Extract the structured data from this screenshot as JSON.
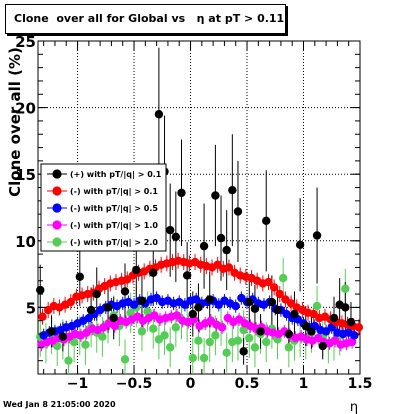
{
  "chart_data": {
    "type": "scatter",
    "title": "Clone  over all for Global vs   η at pT > 0.11",
    "xlabel": "η",
    "ylabel": "Clone  over all (%)",
    "xlim": [
      -1.35,
      1.5
    ],
    "ylim": [
      0,
      25
    ],
    "xticks": [
      -1,
      -0.5,
      0,
      0.5,
      1,
      1.5
    ],
    "xtick_labels": [
      "−1",
      "−0.5",
      "0",
      "0.5",
      "1",
      "1.5"
    ],
    "yticks": [
      5,
      10,
      15,
      20,
      25
    ],
    "ytick_labels": [
      "5",
      "10",
      "15",
      "20",
      "25"
    ],
    "grid": true,
    "legend_position": "center-left",
    "series": [
      {
        "name": "(+) with pT/|q| > 0.1",
        "color": "#000000",
        "x": [
          -1.33,
          -1.23,
          -1.13,
          -0.98,
          -0.88,
          -0.83,
          -0.73,
          -0.68,
          -0.58,
          -0.48,
          -0.43,
          -0.33,
          -0.28,
          -0.23,
          -0.18,
          -0.13,
          -0.08,
          -0.03,
          0.02,
          0.07,
          0.12,
          0.17,
          0.22,
          0.27,
          0.32,
          0.37,
          0.42,
          0.47,
          0.52,
          0.57,
          0.62,
          0.67,
          0.72,
          0.77,
          0.87,
          0.92,
          0.97,
          1.02,
          1.07,
          1.12,
          1.17,
          1.27,
          1.32,
          1.37,
          1.42
        ],
        "y": [
          6.3,
          3.2,
          2.8,
          7.3,
          4.8,
          6.0,
          5.0,
          4.2,
          6.2,
          7.8,
          5.5,
          7.6,
          19.5,
          15.2,
          10.8,
          10.3,
          13.6,
          7.4,
          4.5,
          5.0,
          9.6,
          5.6,
          13.4,
          10.2,
          9.3,
          13.8,
          12.2,
          1.7,
          5.4,
          4.9,
          3.2,
          11.5,
          5.4,
          4.8,
          3.0,
          4.5,
          9.7,
          3.6,
          3.2,
          10.4,
          2.1,
          4.2,
          5.2,
          5.0,
          3.9
        ],
        "yerr": [
          1.9,
          1.2,
          1.1,
          2.2,
          1.7,
          2.0,
          1.9,
          1.6,
          2.1,
          2.5,
          2.0,
          2.5,
          5.0,
          4.2,
          3.5,
          3.4,
          4.0,
          2.5,
          1.7,
          1.8,
          3.2,
          2.1,
          3.8,
          3.2,
          3.0,
          4.2,
          3.8,
          1.0,
          2.0,
          1.8,
          1.3,
          3.8,
          2.0,
          1.8,
          1.2,
          1.7,
          3.5,
          1.5,
          1.3,
          3.6,
          1.0,
          1.6,
          2.0,
          1.9,
          1.5
        ]
      },
      {
        "name": "(-) with pT/|q| > 0.1",
        "color": "#ff0000",
        "x": [
          -1.31,
          -1.26,
          -1.21,
          -1.16,
          -1.11,
          -1.06,
          -1.01,
          -0.96,
          -0.91,
          -0.86,
          -0.81,
          -0.76,
          -0.71,
          -0.66,
          -0.61,
          -0.56,
          -0.51,
          -0.46,
          -0.41,
          -0.36,
          -0.31,
          -0.26,
          -0.21,
          -0.16,
          -0.11,
          -0.06,
          -0.01,
          0.04,
          0.09,
          0.14,
          0.19,
          0.24,
          0.29,
          0.34,
          0.39,
          0.44,
          0.49,
          0.54,
          0.59,
          0.64,
          0.69,
          0.74,
          0.79,
          0.84,
          0.89,
          0.94,
          0.99,
          1.04,
          1.09,
          1.14,
          1.19,
          1.24,
          1.29,
          1.34,
          1.39,
          1.44,
          1.49
        ],
        "y": [
          4.3,
          4.8,
          5.1,
          5.0,
          5.2,
          5.4,
          5.8,
          5.9,
          6.0,
          6.1,
          6.4,
          6.6,
          6.8,
          6.9,
          7.0,
          7.1,
          7.4,
          7.6,
          7.7,
          7.9,
          8.0,
          8.2,
          8.3,
          8.4,
          8.5,
          8.4,
          8.3,
          8.4,
          8.2,
          8.1,
          8.0,
          8.2,
          7.9,
          8.0,
          7.6,
          7.4,
          7.3,
          7.2,
          7.0,
          6.8,
          6.9,
          6.5,
          6.0,
          5.6,
          5.3,
          5.0,
          4.8,
          4.6,
          4.5,
          4.2,
          4.3,
          4.1,
          3.9,
          3.8,
          3.7,
          3.6,
          3.5
        ],
        "yerr": [
          0.6,
          0.6,
          0.6,
          0.6,
          0.6,
          0.6,
          0.6,
          0.6,
          0.6,
          0.6,
          0.6,
          0.6,
          0.6,
          0.6,
          0.6,
          0.6,
          0.6,
          0.6,
          0.6,
          0.6,
          0.6,
          0.6,
          0.6,
          0.6,
          0.6,
          0.6,
          0.6,
          0.6,
          0.6,
          0.6,
          0.6,
          0.6,
          0.6,
          0.6,
          0.6,
          0.6,
          0.6,
          0.6,
          0.6,
          0.6,
          0.6,
          0.6,
          0.6,
          0.6,
          0.6,
          0.6,
          0.6,
          0.6,
          0.6,
          0.6,
          0.6,
          0.6,
          0.6,
          0.6,
          0.6,
          0.6,
          0.6
        ]
      },
      {
        "name": "(-) with pT/|q| > 0.5",
        "color": "#0000ff",
        "x": [
          -1.3,
          -1.25,
          -1.2,
          -1.15,
          -1.1,
          -1.05,
          -1.0,
          -0.95,
          -0.9,
          -0.85,
          -0.8,
          -0.75,
          -0.7,
          -0.65,
          -0.6,
          -0.55,
          -0.5,
          -0.45,
          -0.4,
          -0.35,
          -0.3,
          -0.25,
          -0.2,
          -0.15,
          -0.1,
          -0.05,
          0.0,
          0.05,
          0.1,
          0.15,
          0.2,
          0.25,
          0.3,
          0.35,
          0.4,
          0.45,
          0.5,
          0.55,
          0.6,
          0.65,
          0.7,
          0.75,
          0.8,
          0.85,
          0.9,
          0.95,
          1.0,
          1.05,
          1.1,
          1.15,
          1.2,
          1.25,
          1.3,
          1.35,
          1.4,
          1.45
        ],
        "y": [
          2.9,
          3.1,
          3.2,
          3.3,
          3.5,
          3.6,
          3.8,
          4.0,
          4.2,
          4.5,
          4.8,
          5.0,
          5.2,
          5.1,
          5.3,
          5.4,
          5.2,
          5.5,
          5.3,
          5.6,
          5.7,
          5.4,
          5.5,
          5.3,
          5.4,
          5.2,
          5.5,
          5.6,
          5.3,
          5.4,
          5.5,
          5.2,
          5.5,
          5.3,
          5.1,
          5.7,
          5.4,
          5.6,
          5.3,
          5.2,
          5.4,
          4.9,
          4.8,
          4.5,
          4.2,
          4.1,
          3.8,
          3.5,
          3.6,
          3.3,
          3.2,
          3.5,
          3.1,
          3.0,
          3.1,
          2.9
        ],
        "yerr": [
          0.5,
          0.5,
          0.5,
          0.5,
          0.5,
          0.5,
          0.5,
          0.5,
          0.5,
          0.5,
          0.5,
          0.5,
          0.5,
          0.5,
          0.5,
          0.5,
          0.5,
          0.5,
          0.5,
          0.5,
          0.5,
          0.5,
          0.5,
          0.5,
          0.5,
          0.5,
          0.5,
          0.5,
          0.5,
          0.5,
          0.5,
          0.5,
          0.5,
          0.5,
          0.5,
          0.5,
          0.5,
          0.5,
          0.5,
          0.5,
          0.5,
          0.5,
          0.5,
          0.5,
          0.5,
          0.5,
          0.5,
          0.5,
          0.5,
          0.5,
          0.5,
          0.5,
          0.5,
          0.5,
          0.5,
          0.5
        ]
      },
      {
        "name": "(-) with pT/|q| > 1.0",
        "color": "#ff00ff",
        "x": [
          -1.32,
          -1.27,
          -1.22,
          -1.17,
          -1.12,
          -1.07,
          -1.02,
          -0.97,
          -0.92,
          -0.87,
          -0.82,
          -0.77,
          -0.72,
          -0.67,
          -0.62,
          -0.57,
          -0.52,
          -0.47,
          -0.42,
          -0.37,
          -0.32,
          -0.27,
          -0.22,
          -0.17,
          -0.12,
          -0.07,
          -0.02,
          0.03,
          0.08,
          0.13,
          0.18,
          0.23,
          0.28,
          0.33,
          0.38,
          0.43,
          0.48,
          0.53,
          0.58,
          0.63,
          0.68,
          0.73,
          0.78,
          0.83,
          0.88,
          0.93,
          0.98,
          1.03,
          1.08,
          1.13,
          1.18,
          1.23,
          1.28,
          1.33,
          1.38,
          1.43
        ],
        "y": [
          2.2,
          2.4,
          2.5,
          2.7,
          2.6,
          2.8,
          3.0,
          2.9,
          3.1,
          3.4,
          3.3,
          3.5,
          3.8,
          3.6,
          4.0,
          3.9,
          4.1,
          4.3,
          4.0,
          4.2,
          4.4,
          4.1,
          4.2,
          4.3,
          4.4,
          4.0,
          3.9,
          4.1,
          3.6,
          3.8,
          4.0,
          3.7,
          3.5,
          4.2,
          3.9,
          4.1,
          3.8,
          3.6,
          3.4,
          3.5,
          3.2,
          3.1,
          3.0,
          3.2,
          2.9,
          2.7,
          2.8,
          2.6,
          2.5,
          2.7,
          2.4,
          2.3,
          2.5,
          2.2,
          2.3,
          2.4
        ],
        "yerr": [
          0.5,
          0.5,
          0.5,
          0.5,
          0.5,
          0.5,
          0.5,
          0.5,
          0.5,
          0.5,
          0.5,
          0.5,
          0.5,
          0.5,
          0.5,
          0.5,
          0.5,
          0.5,
          0.5,
          0.5,
          0.5,
          0.5,
          0.5,
          0.5,
          0.5,
          0.5,
          0.5,
          0.5,
          0.5,
          0.5,
          0.5,
          0.5,
          0.5,
          0.5,
          0.5,
          0.5,
          0.5,
          0.5,
          0.5,
          0.5,
          0.5,
          0.5,
          0.5,
          0.5,
          0.5,
          0.5,
          0.5,
          0.5,
          0.5,
          0.5,
          0.5,
          0.5,
          0.5,
          0.5,
          0.5,
          0.5
        ]
      },
      {
        "name": "(-) with pT/|q| > 2.0",
        "color": "#55cc55",
        "x": [
          -1.33,
          -1.28,
          -1.23,
          -1.18,
          -1.13,
          -1.08,
          -1.03,
          -0.98,
          -0.93,
          -0.88,
          -0.83,
          -0.78,
          -0.73,
          -0.68,
          -0.63,
          -0.58,
          -0.53,
          -0.48,
          -0.43,
          -0.38,
          -0.33,
          -0.28,
          -0.23,
          -0.18,
          -0.13,
          -0.08,
          -0.03,
          0.02,
          0.07,
          0.12,
          0.17,
          0.22,
          0.27,
          0.32,
          0.37,
          0.42,
          0.47,
          0.52,
          0.57,
          0.62,
          0.67,
          0.72,
          0.77,
          0.82,
          0.87,
          0.92,
          0.97,
          1.02,
          1.07,
          1.12,
          1.17,
          1.22,
          1.27,
          1.32,
          1.37,
          1.42
        ],
        "y": [
          2.8,
          2.3,
          3.0,
          2.1,
          2.6,
          1.0,
          2.4,
          2.9,
          2.2,
          3.5,
          3.1,
          2.8,
          3.8,
          4.4,
          3.6,
          1.1,
          4.6,
          5.0,
          3.2,
          4.7,
          3.4,
          2.6,
          2.9,
          2.0,
          3.5,
          4.1,
          3.9,
          1.2,
          2.5,
          1.2,
          2.4,
          2.9,
          3.6,
          1.6,
          2.4,
          2.5,
          3.3,
          2.7,
          2.0,
          3.0,
          2.4,
          3.4,
          2.6,
          7.2,
          2.0,
          2.5,
          2.8,
          2.6,
          3.1,
          5.1,
          2.8,
          2.3,
          2.5,
          2.9,
          6.4,
          3.6
        ],
        "yerr": [
          1.5,
          1.5,
          1.5,
          1.5,
          1.5,
          1.5,
          1.5,
          1.5,
          1.5,
          1.5,
          1.5,
          1.5,
          1.5,
          1.5,
          1.5,
          1.5,
          1.5,
          1.5,
          1.5,
          1.5,
          1.5,
          1.5,
          1.5,
          1.5,
          1.5,
          1.5,
          1.5,
          1.5,
          1.5,
          1.5,
          1.5,
          1.5,
          1.5,
          1.5,
          1.5,
          1.5,
          1.5,
          1.5,
          1.5,
          1.5,
          1.5,
          1.5,
          1.5,
          1.5,
          1.5,
          1.5,
          1.5,
          1.5,
          1.5,
          1.5,
          1.5,
          1.5,
          1.5,
          1.5,
          1.5,
          1.5
        ]
      }
    ]
  },
  "footer": {
    "timestamp": "Wed Jan  8 21:05:00 2020"
  }
}
